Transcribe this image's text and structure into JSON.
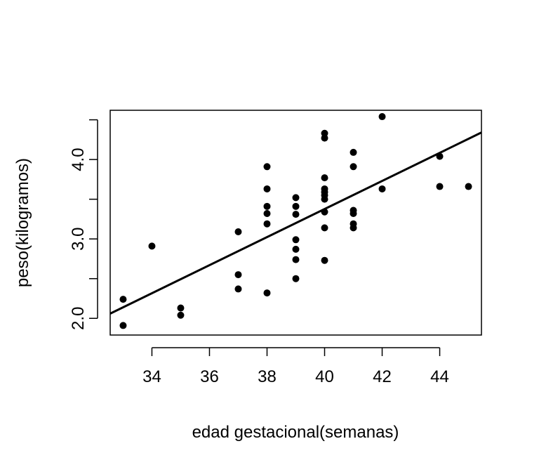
{
  "chart_data": {
    "type": "scatter",
    "title": "",
    "xlabel": "edad gestacional(semanas)",
    "ylabel": "peso(kilogramos)",
    "xlim": [
      32.55,
      45.45
    ],
    "ylim": [
      1.79,
      4.62
    ],
    "x_ticks": [
      "34",
      "36",
      "38",
      "40",
      "42",
      "44"
    ],
    "y_ticks": [
      "2.0",
      "3.0",
      "4.0"
    ],
    "grid": false,
    "legend": "none",
    "point_color": "#000000",
    "line_color": "#000000",
    "points": {
      "x": [
        33,
        33,
        34,
        35,
        35,
        37,
        37,
        37,
        38,
        38,
        38,
        38,
        38,
        38,
        39,
        39,
        39,
        39,
        39,
        39,
        39,
        40,
        40,
        40,
        40,
        40,
        40,
        40,
        40,
        40,
        40,
        41,
        41,
        41,
        41,
        41,
        41,
        42,
        42,
        44,
        44,
        45
      ],
      "y": [
        2.24,
        1.91,
        2.91,
        2.13,
        2.04,
        3.09,
        2.55,
        2.37,
        3.91,
        3.63,
        3.41,
        3.32,
        3.19,
        2.32,
        3.52,
        3.41,
        3.31,
        2.99,
        2.87,
        2.74,
        2.5,
        4.33,
        3.77,
        3.63,
        3.59,
        3.55,
        3.5,
        3.34,
        3.14,
        2.73,
        4.27,
        4.09,
        3.36,
        3.32,
        3.19,
        3.14,
        3.91,
        3.63,
        4.54,
        4.04,
        3.66,
        3.66
      ]
    },
    "regression_line": {
      "x": [
        32.55,
        45.45
      ],
      "y": [
        2.06,
        4.34
      ]
    }
  }
}
